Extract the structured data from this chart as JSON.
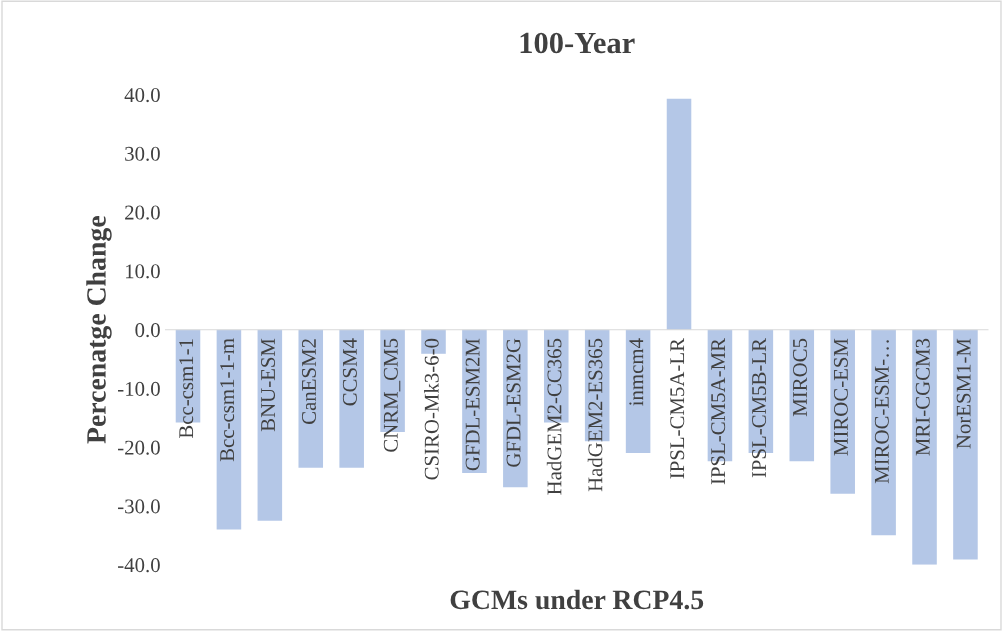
{
  "chart_data": {
    "type": "bar",
    "title": "100-Year",
    "xlabel": "GCMs under RCP4.5",
    "ylabel": "Percenatge Change",
    "categories": [
      "Bcc-csm1-1",
      "Bcc-csm1-1-m",
      "BNU-ESM",
      "CanESM2",
      "CCSM4",
      "CNRM_CM5",
      "CSIRO-Mk3-6-0",
      "GFDL-ESM2M",
      "GFDL-ESM2G",
      "HadGEM2-CC365",
      "HadGEM2-ES365",
      "inmcm4",
      "IPSL-CM5A-LR",
      "IPSL-CM5A-MR",
      "IPSL-CM5B-LR",
      "MIROC5",
      "MIROC-ESM",
      "MIROC-ESM-…",
      "MRI-CGCM3",
      "NorESM1-M"
    ],
    "values": [
      -15.8,
      -34.0,
      -32.5,
      -23.5,
      -23.5,
      -17.4,
      -4.1,
      -24.4,
      -26.8,
      -15.8,
      -19.0,
      -21.0,
      39.3,
      -22.4,
      -21.0,
      -22.4,
      -27.9,
      -35.0,
      -40.0,
      -39.1
    ],
    "color": "#b4c7e7",
    "ylim": [
      -40,
      40
    ],
    "yticks": [
      {
        "value": -40,
        "label": "-40.0"
      },
      {
        "value": -30,
        "label": "-30.0"
      },
      {
        "value": -20,
        "label": "-20.0"
      },
      {
        "value": -10,
        "label": "-10.0"
      },
      {
        "value": 0,
        "label": "0.0"
      },
      {
        "value": 10,
        "label": "10.0"
      },
      {
        "value": 20,
        "label": "20.0"
      },
      {
        "value": 30,
        "label": "30.0"
      },
      {
        "value": 40,
        "label": "40.0"
      }
    ],
    "grid": false,
    "legend": false
  }
}
